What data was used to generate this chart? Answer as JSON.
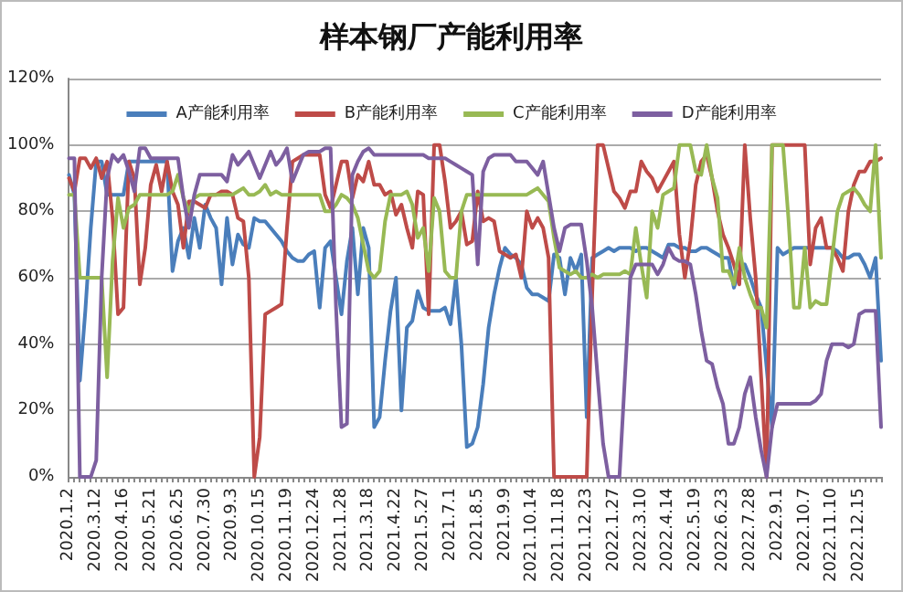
{
  "chart_data": {
    "type": "line",
    "title": "样本钢厂产能利用率",
    "categories": [
      "2020.1.2",
      null,
      null,
      null,
      null,
      "2020.3.12",
      null,
      null,
      null,
      null,
      "2020.4.16",
      null,
      null,
      null,
      null,
      "2020.5.21",
      null,
      null,
      null,
      null,
      "2020.6.25",
      null,
      null,
      null,
      null,
      "2020.7.30",
      null,
      null,
      null,
      null,
      "2020.9.3",
      null,
      null,
      null,
      null,
      "2020.10.15",
      null,
      null,
      null,
      null,
      "2020.11.19",
      null,
      null,
      null,
      null,
      "2020.12.24",
      null,
      null,
      null,
      null,
      "2021.1.28",
      null,
      null,
      null,
      null,
      "2021.3.18",
      null,
      null,
      null,
      null,
      "2021.4.22",
      null,
      null,
      null,
      null,
      "2021.5.27",
      null,
      null,
      null,
      null,
      "2021.7.1",
      null,
      null,
      null,
      null,
      "2021.8.5",
      null,
      null,
      null,
      null,
      "2021.9.9",
      null,
      null,
      null,
      null,
      "2021.10.14",
      null,
      null,
      null,
      null,
      "2021.11.18",
      null,
      null,
      null,
      null,
      "2021.12.23",
      null,
      null,
      null,
      null,
      "2022.1.27",
      null,
      null,
      null,
      null,
      "2022.3.10",
      null,
      null,
      null,
      null,
      "2022.4.14",
      null,
      null,
      null,
      null,
      "2022.5.19",
      null,
      null,
      null,
      null,
      "2022.6.23",
      null,
      null,
      null,
      null,
      "2022.7.28",
      null,
      null,
      null,
      null,
      "2022.9.1",
      null,
      null,
      null,
      null,
      "2022.10.7",
      null,
      null,
      null,
      null,
      "2022.11.10",
      null,
      null,
      null,
      null,
      "2022.12.15",
      null,
      null,
      null,
      null
    ],
    "series": [
      {
        "name": "A产能利用率",
        "color": "#4a7ebb",
        "values": [
          91,
          85,
          29,
          50,
          75,
          95,
          95,
          85,
          85,
          85,
          85,
          95,
          95,
          95,
          95,
          95,
          95,
          95,
          95,
          62,
          71,
          75,
          66,
          78,
          69,
          82,
          78,
          75,
          58,
          78,
          64,
          73,
          70,
          69,
          78,
          77,
          77,
          75,
          73,
          71,
          68,
          66,
          65,
          65,
          67,
          68,
          51,
          69,
          71,
          60,
          49,
          65,
          75,
          55,
          75,
          69,
          15,
          18,
          35,
          50,
          60,
          20,
          45,
          47,
          56,
          51,
          50,
          50,
          50,
          51,
          46,
          60,
          40,
          9,
          10,
          15,
          28,
          45,
          55,
          63,
          69,
          67,
          66,
          64,
          57,
          55,
          55,
          54,
          53,
          67,
          66,
          55,
          66,
          62,
          67,
          18,
          66,
          67,
          68,
          69,
          68,
          69,
          69,
          69,
          68,
          69,
          69,
          68,
          67,
          66,
          70,
          70,
          69,
          69,
          68,
          68,
          69,
          69,
          68,
          67,
          66,
          66,
          57,
          62,
          64,
          60,
          55,
          51,
          33,
          15,
          69,
          67,
          68,
          69,
          69,
          69,
          69,
          69,
          69,
          69,
          69,
          68,
          66,
          66,
          67,
          67,
          64,
          60,
          66,
          35
        ]
      },
      {
        "name": "B产能利用率",
        "color": "#be4b48",
        "values": [
          90,
          86,
          96,
          96,
          93,
          96,
          90,
          95,
          78,
          49,
          51,
          95,
          90,
          58,
          69,
          88,
          94,
          86,
          95,
          86,
          82,
          69,
          83,
          83,
          82,
          81,
          85,
          85,
          86,
          86,
          85,
          78,
          77,
          60,
          0,
          12,
          49,
          50,
          51,
          52,
          75,
          95,
          96,
          97,
          97,
          97,
          97,
          85,
          81,
          88,
          95,
          95,
          84,
          91,
          89,
          95,
          88,
          88,
          85,
          86,
          79,
          82,
          75,
          69,
          86,
          85,
          49,
          100,
          100,
          89,
          75,
          77,
          80,
          70,
          71,
          86,
          77,
          78,
          77,
          68,
          67,
          66,
          67,
          60,
          80,
          75,
          78,
          75,
          66,
          0,
          0,
          0,
          0,
          0,
          0,
          0,
          55,
          100,
          100,
          93,
          86,
          84,
          81,
          86,
          86,
          95,
          92,
          90,
          86,
          89,
          92,
          95,
          73,
          60,
          71,
          88,
          95,
          97,
          90,
          80,
          73,
          69,
          64,
          58,
          100,
          78,
          60,
          30,
          0,
          100,
          100,
          100,
          100,
          100,
          100,
          100,
          64,
          75,
          78,
          69,
          69,
          66,
          62,
          80,
          88,
          92,
          92,
          95,
          95,
          96
        ]
      },
      {
        "name": "C产能利用率",
        "color": "#98b954",
        "values": [
          85,
          85,
          60,
          60,
          60,
          60,
          60,
          30,
          65,
          84,
          75,
          81,
          82,
          85,
          85,
          85,
          85,
          85,
          85,
          86,
          91,
          84,
          80,
          84,
          85,
          85,
          85,
          85,
          85,
          85,
          85,
          86,
          87,
          85,
          85,
          86,
          88,
          85,
          86,
          85,
          85,
          85,
          85,
          85,
          85,
          85,
          85,
          80,
          80,
          82,
          85,
          84,
          82,
          78,
          70,
          62,
          60,
          62,
          77,
          85,
          85,
          85,
          86,
          82,
          72,
          75,
          62,
          84,
          80,
          62,
          60,
          60,
          80,
          85,
          85,
          85,
          85,
          85,
          85,
          85,
          85,
          85,
          85,
          85,
          85,
          86,
          87,
          85,
          83,
          72,
          63,
          62,
          61,
          62,
          60,
          60,
          61,
          60,
          61,
          61,
          61,
          61,
          62,
          61,
          75,
          64,
          54,
          80,
          75,
          85,
          86,
          87,
          100,
          100,
          100,
          92,
          91,
          100,
          90,
          84,
          62,
          62,
          58,
          69,
          60,
          55,
          51,
          51,
          45,
          100,
          100,
          100,
          78,
          51,
          51,
          69,
          51,
          53,
          52,
          52,
          66,
          80,
          85,
          86,
          87,
          85,
          82,
          80,
          100,
          66
        ]
      },
      {
        "name": "D产能利用率",
        "color": "#7d5fa0",
        "values": [
          96,
          96,
          0,
          0,
          0,
          5,
          60,
          90,
          97,
          95,
          97,
          92,
          86,
          99,
          99,
          96,
          96,
          96,
          96,
          96,
          96,
          84,
          75,
          85,
          91,
          91,
          91,
          91,
          91,
          89,
          97,
          94,
          96,
          98,
          94,
          90,
          94,
          98,
          94,
          96,
          99,
          89,
          93,
          97,
          98,
          98,
          98,
          99,
          99,
          51,
          15,
          16,
          91,
          95,
          98,
          99,
          97,
          97,
          97,
          97,
          97,
          97,
          97,
          97,
          97,
          97,
          96,
          96,
          96,
          96,
          95,
          94,
          93,
          92,
          91,
          64,
          92,
          96,
          97,
          97,
          97,
          97,
          95,
          95,
          95,
          93,
          91,
          95,
          85,
          75,
          68,
          75,
          76,
          76,
          76,
          65,
          51,
          30,
          10,
          0,
          0,
          0,
          30,
          60,
          64,
          64,
          64,
          64,
          61,
          64,
          69,
          66,
          65,
          65,
          64,
          55,
          44,
          35,
          34,
          27,
          22,
          10,
          10,
          15,
          25,
          30,
          18,
          8,
          0,
          15,
          22,
          22,
          22,
          22,
          22,
          22,
          22,
          23,
          25,
          35,
          40,
          40,
          40,
          39,
          40,
          49,
          50,
          50,
          50,
          15
        ]
      }
    ],
    "ylim": [
      0,
      120
    ],
    "yticks": [
      {
        "value": 0,
        "label": "0%"
      },
      {
        "value": 20,
        "label": "20%"
      },
      {
        "value": 40,
        "label": "40%"
      },
      {
        "value": 60,
        "label": "60%"
      },
      {
        "value": 80,
        "label": "80%"
      },
      {
        "value": 100,
        "label": "100%"
      },
      {
        "value": 120,
        "label": "120%"
      }
    ],
    "grid": "y",
    "legend": "top",
    "marker": "none",
    "line_style": "solid"
  }
}
